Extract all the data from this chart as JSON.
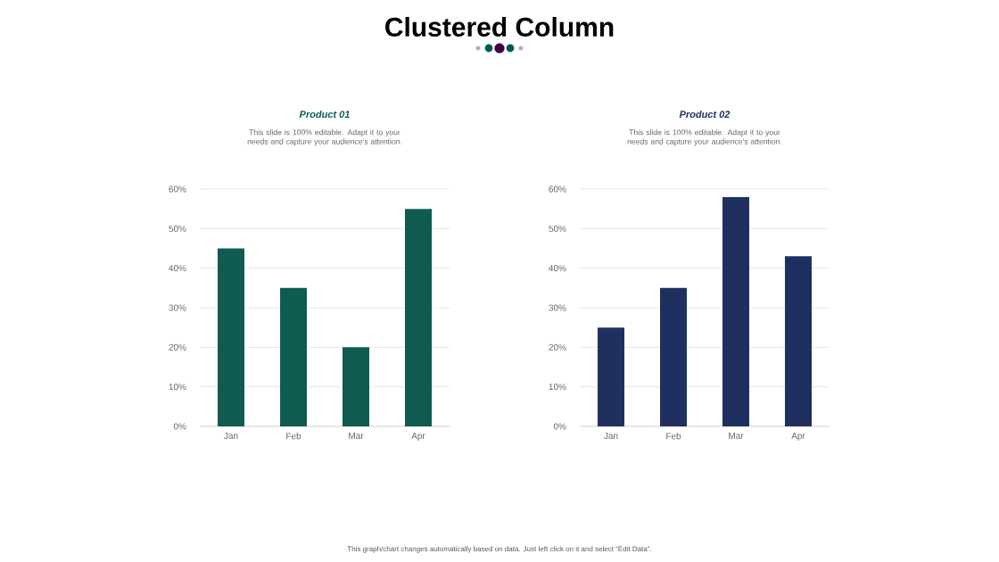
{
  "chart_data": [
    {
      "type": "other",
      "title": "Clustered Column",
      "annotations": [
        "This graph/chart changes automatically based on data. Just left click on it and select “Edit Data”."
      ]
    },
    {
      "type": "bar",
      "title": "Product 01",
      "subtitle": "This slide is 100% editable. Adapt it to your needs and capture your audience's attention.",
      "categories": [
        "Jan",
        "Feb",
        "Mar",
        "Apr"
      ],
      "values": [
        45,
        35,
        20,
        55
      ],
      "color": "#0f5b52",
      "ylim": [
        0,
        60
      ],
      "yticks": [
        {
          "value": 0,
          "label": "0%"
        },
        {
          "value": 10,
          "label": "10%"
        },
        {
          "value": 20,
          "label": "20%"
        },
        {
          "value": 30,
          "label": "30%"
        },
        {
          "value": 40,
          "label": "40%"
        },
        {
          "value": 50,
          "label": "50%"
        },
        {
          "value": 60,
          "label": "60%"
        }
      ],
      "grid": "y"
    },
    {
      "type": "bar",
      "title": "Product 02",
      "subtitle": "This slide is 100% editable. Adapt it to your needs and capture your audience's attention.",
      "categories": [
        "Jan",
        "Feb",
        "Mar",
        "Apr"
      ],
      "values": [
        25,
        35,
        58,
        43
      ],
      "color": "#1f3060",
      "ylim": [
        0,
        60
      ],
      "yticks": [
        {
          "value": 0,
          "label": "0%"
        },
        {
          "value": 10,
          "label": "10%"
        },
        {
          "value": 20,
          "label": "20%"
        },
        {
          "value": 30,
          "label": "30%"
        },
        {
          "value": 40,
          "label": "40%"
        },
        {
          "value": 50,
          "label": "50%"
        },
        {
          "value": 60,
          "label": "60%"
        }
      ],
      "grid": "y"
    }
  ]
}
